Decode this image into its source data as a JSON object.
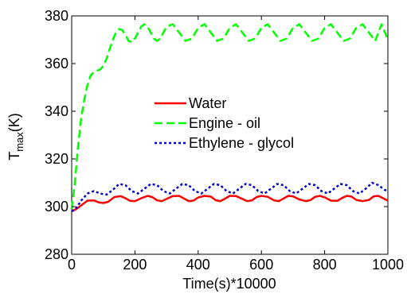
{
  "chart_data": {
    "type": "line",
    "xlabel": "Time(s)*10000",
    "ylabel_main": "T",
    "ylabel_sub": "max",
    "ylabel_unit": "(K)",
    "xlim": [
      0,
      1000
    ],
    "ylim": [
      280,
      380
    ],
    "xticks": [
      0,
      200,
      400,
      600,
      800,
      1000
    ],
    "yticks": [
      280,
      300,
      320,
      340,
      360,
      380
    ],
    "grid": false,
    "legend_position": "center",
    "series": [
      {
        "name": "Water",
        "color": "#ff0000",
        "dash": "solid",
        "x": [
          0,
          15,
          30,
          50,
          70,
          85,
          100,
          115,
          135,
          155,
          170,
          185,
          200,
          220,
          240,
          255,
          270,
          285,
          300,
          320,
          340,
          355,
          370,
          385,
          400,
          420,
          440,
          455,
          470,
          485,
          500,
          520,
          540,
          555,
          570,
          585,
          600,
          620,
          640,
          655,
          670,
          685,
          700,
          720,
          740,
          755,
          770,
          785,
          800,
          820,
          840,
          855,
          870,
          885,
          900,
          920,
          940,
          955,
          970,
          985,
          1000
        ],
        "y": [
          298,
          299,
          300.5,
          302.5,
          302.6,
          301.8,
          301.5,
          302,
          304,
          304.4,
          303.5,
          302.4,
          302.3,
          303.5,
          304.5,
          304,
          302.6,
          302.3,
          303.2,
          304.4,
          304.5,
          303.4,
          302.3,
          302.5,
          303.8,
          304.5,
          304.2,
          302.7,
          302.3,
          303.3,
          304.5,
          304.4,
          303.2,
          302.3,
          302.6,
          304,
          304.5,
          304.1,
          302.6,
          302.3,
          303.4,
          304.5,
          304.3,
          303,
          302.3,
          302.7,
          304.1,
          304.5,
          303.9,
          302.5,
          302.4,
          303.6,
          304.5,
          304.2,
          302.8,
          302.3,
          302.8,
          304.3,
          304.5,
          303.5,
          302.5
        ]
      },
      {
        "name": "Engine - oil",
        "color": "#00ff00",
        "dash": "dashed",
        "x": [
          0,
          10,
          20,
          30,
          40,
          50,
          60,
          70,
          80,
          90,
          100,
          110,
          120,
          130,
          140,
          150,
          160,
          170,
          180,
          190,
          200,
          210,
          220,
          230,
          240,
          250,
          260,
          270,
          280,
          290,
          300,
          320,
          340,
          360,
          380,
          400,
          420,
          440,
          460,
          480,
          500,
          520,
          540,
          560,
          580,
          600,
          620,
          640,
          660,
          680,
          700,
          720,
          740,
          760,
          780,
          800,
          820,
          840,
          860,
          880,
          900,
          920,
          940,
          960,
          980,
          1000
        ],
        "y": [
          299,
          310,
          325,
          337,
          345,
          351,
          355,
          356.5,
          357,
          357.5,
          359,
          362,
          366,
          370,
          373,
          374.5,
          374,
          372,
          369.5,
          369,
          370.5,
          373,
          375.5,
          376.5,
          375.5,
          373,
          370.5,
          369.5,
          370.5,
          373,
          375.5,
          376.5,
          373,
          369.5,
          370.5,
          375,
          376.5,
          373,
          369.5,
          370.5,
          375,
          376.5,
          373,
          369.5,
          370.5,
          375,
          376.5,
          373,
          369.5,
          370.5,
          375,
          376.5,
          373,
          369.5,
          370.5,
          375,
          376.5,
          373,
          369.5,
          370.5,
          375,
          376.5,
          373,
          369.5,
          376.5,
          370
        ]
      },
      {
        "name": "Ethylene - glycol",
        "color": "#0000cc",
        "dash": "dotted",
        "x": [
          0,
          15,
          30,
          50,
          70,
          90,
          110,
          130,
          150,
          170,
          190,
          210,
          230,
          250,
          270,
          290,
          310,
          330,
          350,
          370,
          390,
          410,
          430,
          450,
          470,
          490,
          510,
          530,
          550,
          570,
          590,
          610,
          630,
          650,
          670,
          690,
          710,
          730,
          750,
          770,
          790,
          810,
          830,
          850,
          870,
          890,
          910,
          930,
          950,
          970,
          990,
          1000
        ],
        "y": [
          298,
          299.5,
          302.5,
          305.5,
          306.5,
          305.5,
          305,
          307,
          309.5,
          309,
          306.5,
          305.5,
          307.5,
          309.5,
          309,
          306.5,
          305.5,
          307.5,
          309.5,
          309,
          306.5,
          305.5,
          307.5,
          309.5,
          309,
          306.5,
          305.5,
          307.5,
          309.5,
          309,
          306.5,
          305.5,
          307.5,
          309.5,
          309,
          306.5,
          305.5,
          307.5,
          309.5,
          309,
          306.5,
          305.5,
          307.5,
          309.5,
          309,
          306.5,
          305.5,
          307.5,
          310,
          309,
          307,
          306.5
        ]
      }
    ]
  }
}
